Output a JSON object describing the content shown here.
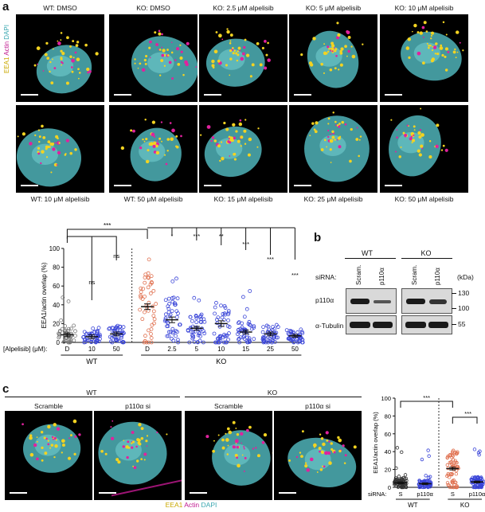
{
  "panel_a": {
    "letter": "a",
    "top_row_titles": [
      "WT: DMSO",
      "KO: DMSO",
      "KO: 2.5 μM alpelisib",
      "KO: 5 μM alpelisib",
      "KO: 10 μM alpelisib"
    ],
    "bottom_row_titles": [
      "WT: 10 μM alpelisib",
      "WT: 50 μM alpelisib",
      "KO: 15 μM alpelisib",
      "KO: 25 μM alpelisib",
      "KO: 50 μM alpelisib"
    ],
    "stain_legend": {
      "eea1": "EEA1",
      "actin": "Actin",
      "dapi": "DAPI"
    },
    "colors": {
      "eea1": "#f2d022",
      "actin": "#d21fa0",
      "dapi": "#58c6c8"
    }
  },
  "chart_a": {
    "type": "scatter",
    "ylabel": "EEA1/actin overlap (%)",
    "ylim": [
      0,
      100
    ],
    "yticks": [
      "0",
      "20",
      "40",
      "60",
      "80",
      "100"
    ],
    "xlabel_prefix": "[Alpelisib] (μM):",
    "categories": [
      "D",
      "10",
      "50",
      "D",
      "2.5",
      "5",
      "10",
      "15",
      "25",
      "50"
    ],
    "groups": [
      {
        "label": "WT",
        "span": [
          0,
          2
        ]
      },
      {
        "label": "KO",
        "span": [
          3,
          9
        ]
      }
    ],
    "means": [
      8,
      6,
      9,
      38,
      24,
      15,
      20,
      11,
      9,
      7
    ],
    "sems": [
      2,
      2,
      2,
      3,
      3,
      2,
      3,
      2,
      2,
      1.5
    ],
    "colors": [
      "#777777",
      "#3a45d8",
      "#3a45d8",
      "#e0704f",
      "#3a45d8",
      "#3a45d8",
      "#3a45d8",
      "#3a45d8",
      "#3a45d8",
      "#3a45d8"
    ],
    "sig_marks": [
      "ns",
      "ns",
      "*",
      "***",
      "**",
      "***",
      "***",
      "***"
    ],
    "top_sig": "***"
  },
  "panel_b": {
    "letter": "b",
    "wt_label": "WT",
    "ko_label": "KO",
    "sirna_label": "siRNA:",
    "lane_labels": [
      "Scram.",
      "p110α",
      "Scram.",
      "p110α"
    ],
    "kda_label": "(kDa)",
    "rows": [
      {
        "name": "p110α",
        "markers": [
          "130",
          "100"
        ]
      },
      {
        "name": "α-Tubulin",
        "markers": [
          "55"
        ]
      }
    ]
  },
  "panel_c": {
    "letter": "c",
    "wt_label": "WT",
    "ko_label": "KO",
    "tile_titles": [
      "Scramble",
      "p110α si",
      "Scramble",
      "p110α si"
    ],
    "stain_legend": {
      "eea1": "EEA1",
      "actin": "Actin",
      "dapi": "DAPI"
    }
  },
  "chart_c": {
    "type": "scatter",
    "ylabel": "EEA1/actin overlap (%)",
    "ylim": [
      0,
      100
    ],
    "yticks": [
      "0",
      "20",
      "40",
      "60",
      "80",
      "100"
    ],
    "sirna_label": "siRNA:",
    "categories": [
      "S",
      "p110α",
      "S",
      "p110α"
    ],
    "groups": [
      {
        "label": "WT",
        "span": [
          0,
          1
        ]
      },
      {
        "label": "KO",
        "span": [
          2,
          3
        ]
      }
    ],
    "means": [
      5,
      4,
      21,
      6
    ],
    "sems": [
      1,
      1,
      1.5,
      1
    ],
    "colors": [
      "#333333",
      "#3a45d8",
      "#e0704f",
      "#3a45d8"
    ],
    "sig_marks": [
      "***",
      "***"
    ]
  }
}
